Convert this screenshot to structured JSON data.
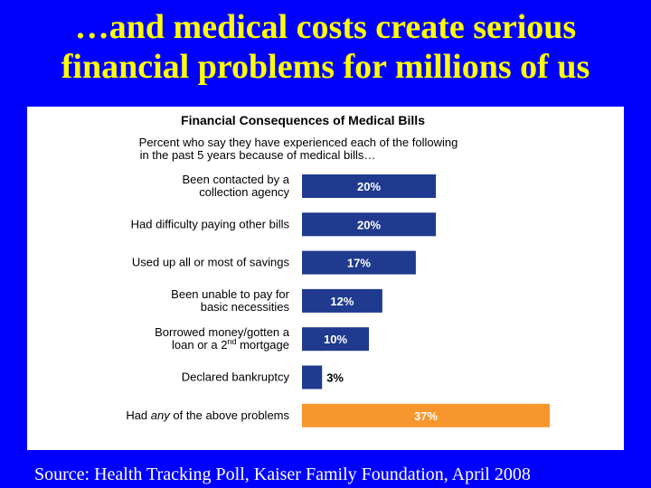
{
  "slide": {
    "title_line1": "…and medical costs create serious",
    "title_line2": "financial problems for millions of us",
    "source": "Source: Health Tracking Poll, Kaiser Family Foundation, April 2008",
    "background_color": "#0000ff",
    "title_color": "#ffff00"
  },
  "chart_data": {
    "type": "bar",
    "orientation": "horizontal",
    "title": "Financial Consequences of Medical Bills",
    "subtitle_line1": "Percent who say they have experienced each of the following",
    "subtitle_line2": "in the past 5 years because of medical bills…",
    "categories": [
      [
        "Been contacted by a",
        "collection agency"
      ],
      [
        "Had difficulty paying other bills"
      ],
      [
        "Used up all or most of savings"
      ],
      [
        "Been unable to pay for",
        "basic necessities"
      ],
      [
        "Borrowed money/gotten a",
        "loan or a 2nd mortgage"
      ],
      [
        "Declared bankruptcy"
      ],
      [
        "Had any of the above problems"
      ]
    ],
    "values": [
      20,
      20,
      17,
      12,
      10,
      3,
      37
    ],
    "value_labels": [
      "20%",
      "20%",
      "17%",
      "12%",
      "10%",
      "3%",
      "37%"
    ],
    "unit": "%",
    "colors": {
      "bar": "#1f3a8f",
      "highlight_bar": "#f7962c",
      "bar_label": "#ffffff",
      "outside_label": "#000000"
    },
    "highlight_index": 6,
    "xlim": [
      0,
      37
    ],
    "grid": false,
    "legend": "none"
  }
}
